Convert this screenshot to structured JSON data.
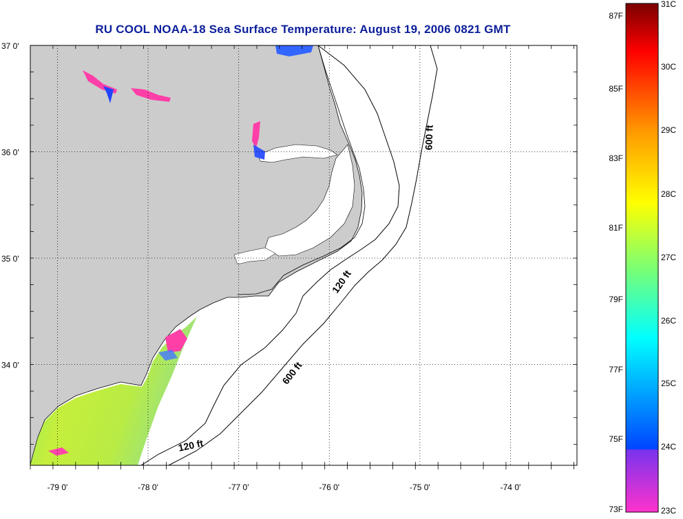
{
  "title": "RU COOL  NOAA-18  Sea Surface Temperature:  August 19, 2006 0821 GMT",
  "map": {
    "lon_ticks": [
      {
        "lon": -79,
        "label": "-79 0'"
      },
      {
        "lon": -78,
        "label": "-78 0'"
      },
      {
        "lon": -77,
        "label": "-77 0'"
      },
      {
        "lon": -76,
        "label": "-76 0'"
      },
      {
        "lon": -75,
        "label": "-75 0'"
      },
      {
        "lon": -74,
        "label": "-74 0'"
      }
    ],
    "lat_ticks": [
      {
        "lat": 37,
        "label": "37 0'"
      },
      {
        "lat": 36,
        "label": "36 0'"
      },
      {
        "lat": 35,
        "label": "35 0'"
      },
      {
        "lat": 34,
        "label": "34 0'"
      }
    ],
    "contour_labels": [
      {
        "id": "600-north",
        "text": "600 ft"
      },
      {
        "id": "120-mid",
        "text": "120 ft"
      },
      {
        "id": "600-south",
        "text": "600 ft"
      },
      {
        "id": "120-south",
        "text": "120 ft"
      }
    ]
  },
  "colorbar": {
    "fahrenheit_labels": [
      "87F",
      "85F",
      "83F",
      "81F",
      "79F",
      "77F",
      "75F",
      "73F"
    ],
    "celsius_labels": [
      "31C",
      "30C",
      "29C",
      "28C",
      "27C",
      "26C",
      "25C",
      "24C",
      "23C"
    ],
    "colors": {
      "top": "#7a0000",
      "red": "#ff0000",
      "orange": "#ff9900",
      "yellow": "#ffff00",
      "green": "#77ff77",
      "cyan": "#00ffff",
      "blue": "#0044ff",
      "violet": "#7733ee",
      "bottom": "#ff33cc"
    }
  },
  "colors": {
    "land": "#cccccc",
    "title": "#0b1e9a",
    "sst_warm": "#c8ee44",
    "sst_cool": "#66ddaa",
    "sst_cold": "#ff44aa"
  }
}
